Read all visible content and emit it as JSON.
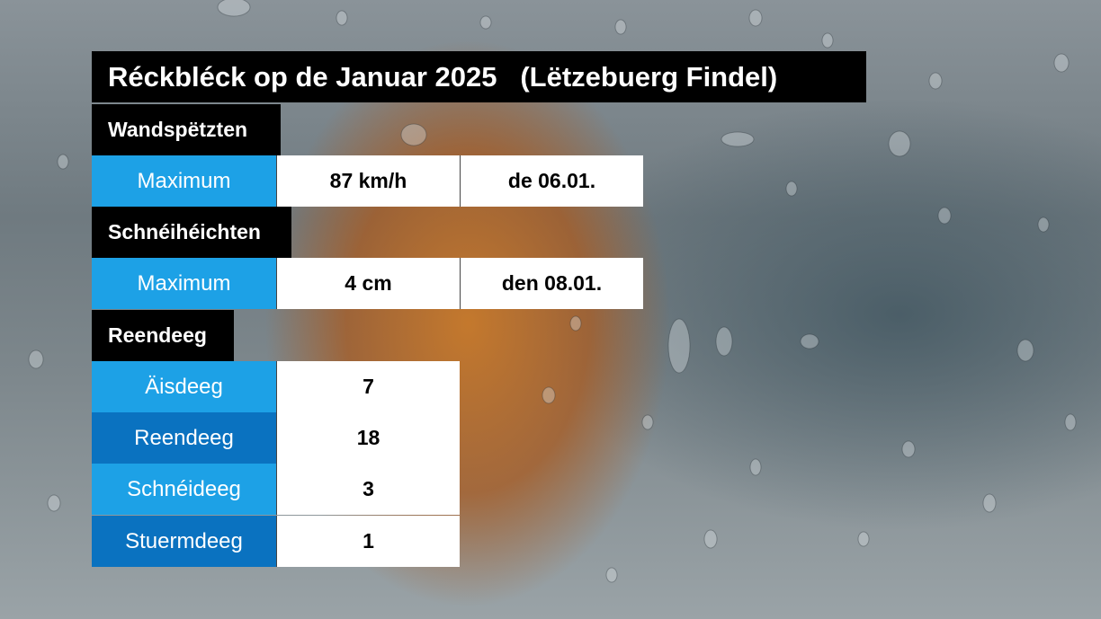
{
  "title": "Réckbléck op de Januar 2025   (Lëtzebuerg Findel)",
  "wind": {
    "heading": "Wandspëtzten",
    "label": "Maximum",
    "value": "87 km/h",
    "date": "de 06.01."
  },
  "snow": {
    "heading": "Schnéihéichten",
    "label": "Maximum",
    "value": "4 cm",
    "date": "den 08.01."
  },
  "rain": {
    "heading": "Reendeeg",
    "rows": [
      {
        "label": "Äisdeeg",
        "value": "7"
      },
      {
        "label": "Reendeeg",
        "value": "18"
      },
      {
        "label": "Schnéideeg",
        "value": "3"
      },
      {
        "label": "Stuermdeeg",
        "value": "1"
      }
    ]
  },
  "colors": {
    "label_light": "#1da1e6",
    "label_dark": "#0a72c0",
    "header_bg": "#000000",
    "value_bg": "#ffffff"
  }
}
